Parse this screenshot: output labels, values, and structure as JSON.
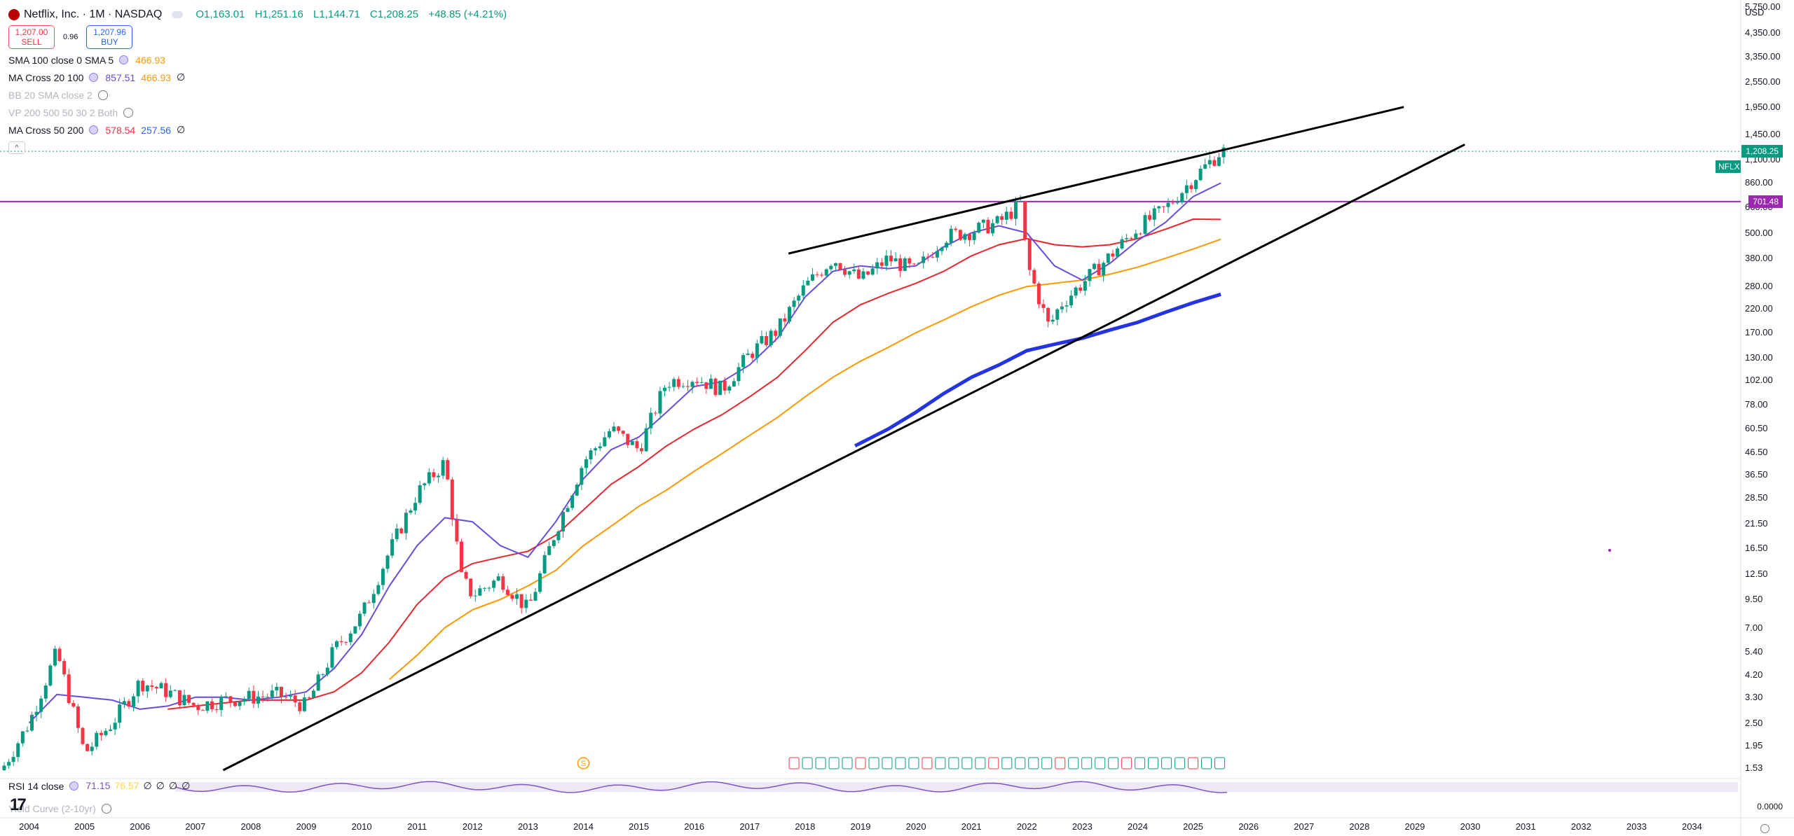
{
  "symbol": {
    "title": "Netflix, Inc. · 1M · NASDAQ",
    "open": "O1,163.01",
    "high": "H1,251.16",
    "low": "L1,144.71",
    "close": "C1,208.25",
    "change": "+48.85 (+4.21%)"
  },
  "trade": {
    "sell_price": "1,207.00",
    "sell_label": "SELL",
    "spread": "0.96",
    "buy_price": "1,207.96",
    "buy_label": "BUY"
  },
  "indicators": [
    {
      "name": "SMA 100 close 0 SMA 5",
      "values": [
        "466.93"
      ],
      "colors": [
        "#ff9800"
      ],
      "dim": false,
      "eye": false
    },
    {
      "name": "MA Cross 20 100",
      "values": [
        "857.51",
        "466.93",
        "∅"
      ],
      "colors": [
        "#6a4be0",
        "#ff9800",
        "#131722"
      ],
      "dim": false,
      "eye": false
    },
    {
      "name": "BB 20 SMA close 2",
      "values": [],
      "colors": [],
      "dim": true,
      "eye": true
    },
    {
      "name": "VP 200 500 50 30 2 Both",
      "values": [],
      "colors": [],
      "dim": true,
      "eye": true
    },
    {
      "name": "MA Cross 50 200",
      "values": [
        "578.54",
        "257.56",
        "∅"
      ],
      "colors": [
        "#f23645",
        "#2962ff",
        "#131722"
      ],
      "dim": false,
      "eye": false
    }
  ],
  "collapse_label": "^",
  "price_axis": {
    "currency": "USD",
    "ticks": [
      "5,750.00",
      "4,350.00",
      "3,350.00",
      "2,550.00",
      "1,950.00",
      "1,450.00",
      "1,100.00",
      "860.00",
      "660.00",
      "500.00",
      "380.00",
      "280.00",
      "220.00",
      "170.00",
      "130.00",
      "102.00",
      "78.00",
      "60.50",
      "46.50",
      "36.50",
      "28.50",
      "21.50",
      "16.50",
      "12.50",
      "9.50",
      "7.00",
      "5.40",
      "4.20",
      "3.30",
      "2.50",
      "1.95",
      "1.53"
    ],
    "last_symbol": "NFLX",
    "last_price": "1,208.25",
    "line_price": "701.48"
  },
  "time_axis": {
    "ticks": [
      "2004",
      "2005",
      "2006",
      "2007",
      "2008",
      "2009",
      "2010",
      "2011",
      "2012",
      "2013",
      "2014",
      "2015",
      "2016",
      "2017",
      "2018",
      "2019",
      "2020",
      "2021",
      "2022",
      "2023",
      "2024",
      "2025",
      "2026",
      "2027",
      "2028",
      "2029",
      "2030",
      "2031",
      "2032",
      "2033",
      "2034"
    ]
  },
  "rsi": {
    "name": "RSI 14 close",
    "values": [
      "71.15",
      "76.57",
      "∅",
      "∅",
      "∅",
      "∅"
    ],
    "colors": [
      "#7e57c2",
      "#ffd54f",
      "#131722",
      "#131722",
      "#131722",
      "#131722"
    ],
    "right_value": "0.0000"
  },
  "yield_curve": {
    "name": "Yield Curve (2-10yr)"
  },
  "earnings_marker_count": 33,
  "split_marker": "S",
  "colors": {
    "up": "#089981",
    "down": "#f23645",
    "ma_fast": "#6a4be0",
    "ma_mid": "#e8262e",
    "ma_slow": "#ff9800",
    "ma_200": "#2434e0",
    "hline": "#9c27b0",
    "trendline": "#000000"
  },
  "chart_data": {
    "type": "candlestick",
    "scale": "log",
    "x_range": [
      2003.5,
      2034.5
    ],
    "y_range": [
      1.5,
      5750
    ],
    "close_series": {
      "x": [
        2003.5,
        2004.0,
        2004.5,
        2005.0,
        2005.5,
        2006.0,
        2006.5,
        2007.0,
        2007.5,
        2008.0,
        2008.5,
        2009.0,
        2009.5,
        2010.0,
        2010.5,
        2011.0,
        2011.5,
        2011.8,
        2012.0,
        2012.5,
        2013.0,
        2013.5,
        2014.0,
        2014.5,
        2015.0,
        2015.5,
        2016.0,
        2016.5,
        2017.0,
        2017.5,
        2018.0,
        2018.5,
        2019.0,
        2019.5,
        2020.0,
        2020.5,
        2021.0,
        2021.5,
        2021.9,
        2022.0,
        2022.4,
        2022.6,
        2023.0,
        2023.5,
        2024.0,
        2024.5,
        2025.0,
        2025.5
      ],
      "y": [
        1.5,
        2.5,
        5.4,
        1.8,
        2.5,
        3.9,
        3.5,
        3.0,
        3.2,
        3.3,
        3.4,
        3.0,
        5.5,
        8.0,
        16,
        30,
        42,
        12,
        10,
        12,
        8.5,
        20,
        42,
        60,
        48,
        100,
        105,
        92,
        135,
        175,
        280,
        380,
        300,
        380,
        330,
        480,
        510,
        560,
        690,
        360,
        180,
        230,
        290,
        390,
        530,
        650,
        900,
        1208.25
      ]
    },
    "ma_fast_series": [
      [
        2004.0,
        2.5
      ],
      [
        2004.5,
        3.4
      ],
      [
        2005.0,
        3.3
      ],
      [
        2005.5,
        3.2
      ],
      [
        2006.0,
        2.9
      ],
      [
        2006.5,
        3.0
      ],
      [
        2007.0,
        3.3
      ],
      [
        2007.5,
        3.3
      ],
      [
        2008.0,
        3.2
      ],
      [
        2008.5,
        3.3
      ],
      [
        2009.0,
        3.5
      ],
      [
        2009.5,
        4.5
      ],
      [
        2010.0,
        6.5
      ],
      [
        2010.5,
        11
      ],
      [
        2011.0,
        17
      ],
      [
        2011.5,
        23
      ],
      [
        2012.0,
        22
      ],
      [
        2012.5,
        17
      ],
      [
        2013.0,
        15
      ],
      [
        2013.5,
        22
      ],
      [
        2014.0,
        35
      ],
      [
        2014.5,
        48
      ],
      [
        2015.0,
        55
      ],
      [
        2015.5,
        72
      ],
      [
        2016.0,
        95
      ],
      [
        2016.5,
        100
      ],
      [
        2017.0,
        120
      ],
      [
        2017.5,
        160
      ],
      [
        2018.0,
        250
      ],
      [
        2018.5,
        330
      ],
      [
        2019.0,
        350
      ],
      [
        2019.5,
        340
      ],
      [
        2020.0,
        350
      ],
      [
        2020.5,
        430
      ],
      [
        2021.0,
        500
      ],
      [
        2021.5,
        540
      ],
      [
        2022.0,
        500
      ],
      [
        2022.5,
        350
      ],
      [
        2023.0,
        300
      ],
      [
        2023.5,
        360
      ],
      [
        2024.0,
        460
      ],
      [
        2024.5,
        560
      ],
      [
        2025.0,
        740
      ],
      [
        2025.5,
        857.51
      ]
    ],
    "ma_mid_series": [
      [
        2006.5,
        2.9
      ],
      [
        2007.0,
        3.0
      ],
      [
        2008.0,
        3.2
      ],
      [
        2009.0,
        3.2
      ],
      [
        2009.5,
        3.5
      ],
      [
        2010.0,
        4.3
      ],
      [
        2010.5,
        6.0
      ],
      [
        2011.0,
        9.0
      ],
      [
        2011.5,
        12
      ],
      [
        2012.0,
        14
      ],
      [
        2012.5,
        15
      ],
      [
        2013.0,
        16
      ],
      [
        2013.5,
        19
      ],
      [
        2014.0,
        25
      ],
      [
        2014.5,
        33
      ],
      [
        2015.0,
        40
      ],
      [
        2015.5,
        50
      ],
      [
        2016.0,
        60
      ],
      [
        2016.5,
        70
      ],
      [
        2017.0,
        85
      ],
      [
        2017.5,
        105
      ],
      [
        2018.0,
        140
      ],
      [
        2018.5,
        190
      ],
      [
        2019.0,
        230
      ],
      [
        2019.5,
        260
      ],
      [
        2020.0,
        290
      ],
      [
        2020.5,
        330
      ],
      [
        2021.0,
        390
      ],
      [
        2021.5,
        440
      ],
      [
        2022.0,
        470
      ],
      [
        2022.5,
        440
      ],
      [
        2023.0,
        430
      ],
      [
        2023.5,
        440
      ],
      [
        2024.0,
        470
      ],
      [
        2024.5,
        520
      ],
      [
        2025.0,
        580
      ],
      [
        2025.5,
        578.54
      ]
    ],
    "ma_slow_series": [
      [
        2010.5,
        4.0
      ],
      [
        2011.0,
        5.2
      ],
      [
        2011.5,
        7.0
      ],
      [
        2012.0,
        8.5
      ],
      [
        2012.5,
        9.5
      ],
      [
        2013.0,
        11
      ],
      [
        2013.5,
        13
      ],
      [
        2014.0,
        17
      ],
      [
        2014.5,
        21
      ],
      [
        2015.0,
        26
      ],
      [
        2015.5,
        31
      ],
      [
        2016.0,
        38
      ],
      [
        2016.5,
        46
      ],
      [
        2017.0,
        56
      ],
      [
        2017.5,
        68
      ],
      [
        2018.0,
        85
      ],
      [
        2018.5,
        105
      ],
      [
        2019.0,
        125
      ],
      [
        2019.5,
        145
      ],
      [
        2020.0,
        170
      ],
      [
        2020.5,
        195
      ],
      [
        2021.0,
        225
      ],
      [
        2021.5,
        255
      ],
      [
        2022.0,
        280
      ],
      [
        2022.5,
        290
      ],
      [
        2023.0,
        300
      ],
      [
        2023.5,
        320
      ],
      [
        2024.0,
        345
      ],
      [
        2024.5,
        380
      ],
      [
        2025.0,
        420
      ],
      [
        2025.5,
        466.93
      ]
    ],
    "ma_200_series": [
      [
        2018.9,
        50
      ],
      [
        2019.5,
        60
      ],
      [
        2020.0,
        72
      ],
      [
        2020.5,
        88
      ],
      [
        2021.0,
        105
      ],
      [
        2021.5,
        120
      ],
      [
        2022.0,
        140
      ],
      [
        2022.5,
        150
      ],
      [
        2023.0,
        160
      ],
      [
        2023.5,
        175
      ],
      [
        2024.0,
        190
      ],
      [
        2024.5,
        212
      ],
      [
        2025.0,
        235
      ],
      [
        2025.5,
        257.56
      ]
    ],
    "horizontal_line": 701.48,
    "trendlines": [
      [
        [
          2017.7,
          400
        ],
        [
          2028.8,
          1950
        ]
      ],
      [
        [
          2007.5,
          1.5
        ],
        [
          2029.9,
          1300
        ]
      ]
    ]
  }
}
